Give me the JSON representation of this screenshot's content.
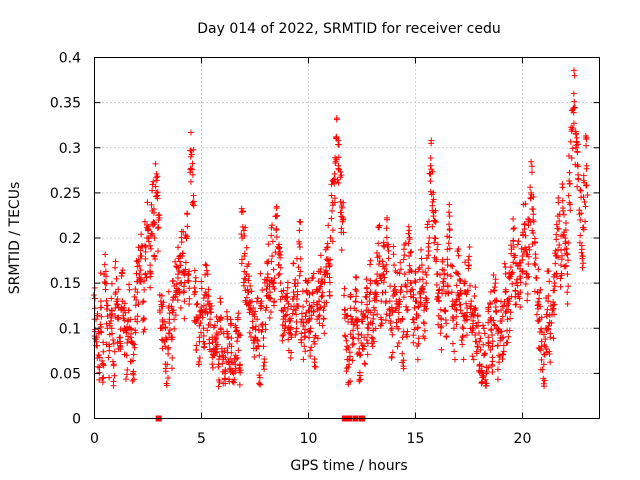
{
  "chart_data": {
    "type": "scatter",
    "title": "Day 014 of 2022, SRMTID for receiver cedu",
    "xlabel": "GPS time / hours",
    "ylabel": "SRMTID / TECUs",
    "xlim": [
      0,
      23.6
    ],
    "ylim": [
      0,
      0.4
    ],
    "x_ticks": [
      0,
      5,
      10,
      15,
      20
    ],
    "x_tick_labels": [
      "0",
      "5",
      "10",
      "15",
      "20"
    ],
    "y_ticks": [
      0,
      0.05,
      0.1,
      0.15,
      0.2,
      0.25,
      0.3,
      0.35,
      0.4
    ],
    "y_tick_labels": [
      "0",
      "0.05",
      "0.1",
      "0.15",
      "0.2",
      "0.25",
      "0.3",
      "0.35",
      "0.4"
    ],
    "grid": true,
    "marker": "plus",
    "color": "#ff0000",
    "series": [
      {
        "name": "SRMTID",
        "x": [
          0.0,
          0.1,
          0.2,
          0.3,
          0.4,
          0.5,
          0.6,
          0.7,
          0.8,
          0.9,
          1.0,
          1.1,
          1.2,
          1.3,
          1.4,
          1.5,
          1.6,
          1.7,
          1.8,
          1.9,
          2.0,
          2.1,
          2.2,
          2.3,
          2.4,
          2.5,
          2.6,
          2.7,
          2.8,
          2.9,
          3.0,
          3.1,
          3.2,
          3.3,
          3.4,
          3.5,
          3.6,
          3.7,
          3.8,
          3.9,
          4.0,
          4.1,
          4.2,
          4.3,
          4.4,
          4.5,
          4.6,
          4.7,
          4.8,
          4.9,
          5.0,
          5.1,
          5.2,
          5.3,
          5.4,
          5.5,
          5.6,
          5.7,
          5.8,
          5.9,
          6.0,
          6.1,
          6.2,
          6.3,
          6.4,
          6.5,
          6.6,
          6.7,
          6.8,
          6.9,
          7.0,
          7.1,
          7.2,
          7.3,
          7.4,
          7.5,
          7.6,
          7.7,
          7.8,
          7.9,
          8.0,
          8.1,
          8.2,
          8.3,
          8.4,
          8.5,
          8.6,
          8.7,
          8.8,
          8.9,
          9.0,
          9.1,
          9.2,
          9.3,
          9.4,
          9.5,
          9.6,
          9.7,
          9.8,
          9.9,
          10.0,
          10.1,
          10.2,
          10.3,
          10.4,
          10.5,
          10.6,
          10.7,
          10.8,
          10.9,
          11.0,
          11.1,
          11.2,
          11.3,
          11.4,
          11.5,
          11.6,
          11.7,
          11.8,
          11.9,
          12.0,
          12.1,
          12.2,
          12.3,
          12.4,
          12.5,
          12.6,
          12.7,
          12.8,
          12.9,
          13.0,
          13.1,
          13.2,
          13.3,
          13.4,
          13.5,
          13.6,
          13.7,
          13.8,
          13.9,
          14.0,
          14.1,
          14.2,
          14.3,
          14.4,
          14.5,
          14.6,
          14.7,
          14.8,
          14.9,
          15.0,
          15.1,
          15.2,
          15.3,
          15.4,
          15.5,
          15.6,
          15.7,
          15.8,
          15.9,
          16.0,
          16.1,
          16.2,
          16.3,
          16.4,
          16.5,
          16.6,
          16.7,
          16.8,
          16.9,
          17.0,
          17.1,
          17.2,
          17.3,
          17.4,
          17.5,
          17.6,
          17.7,
          17.8,
          17.9,
          18.0,
          18.1,
          18.2,
          18.3,
          18.4,
          18.5,
          18.6,
          18.7,
          18.8,
          18.9,
          19.0,
          19.1,
          19.2,
          19.3,
          19.4,
          19.5,
          19.6,
          19.7,
          19.8,
          19.9,
          20.0,
          20.1,
          20.2,
          20.3,
          20.4,
          20.5,
          20.6,
          20.7,
          20.8,
          20.9,
          21.0,
          21.1,
          21.2,
          21.3,
          21.4,
          21.5,
          21.6,
          21.7,
          21.8,
          21.9,
          22.0,
          22.1,
          22.2,
          22.3,
          22.4,
          22.5,
          22.6,
          22.7,
          22.8,
          22.9,
          23.0
        ],
        "y": [
          0.11,
          0.09,
          0.07,
          0.13,
          0.06,
          0.15,
          0.1,
          0.08,
          0.12,
          0.06,
          0.14,
          0.11,
          0.09,
          0.13,
          0.1,
          0.07,
          0.12,
          0.09,
          0.05,
          0.11,
          0.14,
          0.16,
          0.18,
          0.13,
          0.19,
          0.21,
          0.17,
          0.23,
          0.2,
          0.25,
          0.22,
          0.13,
          0.1,
          0.08,
          0.06,
          0.11,
          0.09,
          0.12,
          0.14,
          0.16,
          0.15,
          0.18,
          0.13,
          0.2,
          0.16,
          0.29,
          0.27,
          0.14,
          0.11,
          0.09,
          0.12,
          0.1,
          0.14,
          0.13,
          0.11,
          0.09,
          0.07,
          0.08,
          0.06,
          0.1,
          0.07,
          0.05,
          0.09,
          0.06,
          0.08,
          0.05,
          0.07,
          0.09,
          0.06,
          0.2,
          0.18,
          0.16,
          0.14,
          0.12,
          0.1,
          0.09,
          0.11,
          0.07,
          0.13,
          0.08,
          0.12,
          0.16,
          0.14,
          0.18,
          0.13,
          0.21,
          0.17,
          0.15,
          0.12,
          0.1,
          0.13,
          0.11,
          0.09,
          0.14,
          0.12,
          0.15,
          0.19,
          0.11,
          0.08,
          0.13,
          0.12,
          0.1,
          0.14,
          0.09,
          0.11,
          0.13,
          0.15,
          0.12,
          0.16,
          0.19,
          0.17,
          0.23,
          0.26,
          0.31,
          0.28,
          0.24,
          0.22,
          0.12,
          0.08,
          0.06,
          0.11,
          0.09,
          0.13,
          0.1,
          0.07,
          0.11,
          0.09,
          0.12,
          0.1,
          0.14,
          0.08,
          0.12,
          0.15,
          0.18,
          0.13,
          0.16,
          0.14,
          0.19,
          0.12,
          0.1,
          0.17,
          0.13,
          0.11,
          0.14,
          0.09,
          0.16,
          0.12,
          0.18,
          0.15,
          0.11,
          0.13,
          0.1,
          0.14,
          0.17,
          0.12,
          0.15,
          0.19,
          0.28,
          0.24,
          0.2,
          0.16,
          0.13,
          0.11,
          0.15,
          0.12,
          0.17,
          0.21,
          0.14,
          0.1,
          0.13,
          0.16,
          0.12,
          0.09,
          0.14,
          0.11,
          0.17,
          0.13,
          0.1,
          0.12,
          0.08,
          0.06,
          0.04,
          0.07,
          0.05,
          0.09,
          0.11,
          0.08,
          0.13,
          0.1,
          0.07,
          0.12,
          0.09,
          0.14,
          0.11,
          0.13,
          0.16,
          0.19,
          0.15,
          0.17,
          0.14,
          0.18,
          0.21,
          0.16,
          0.19,
          0.25,
          0.22,
          0.17,
          0.14,
          0.11,
          0.08,
          0.06,
          0.1,
          0.13,
          0.09,
          0.12,
          0.15,
          0.18,
          0.21,
          0.17,
          0.23,
          0.2,
          0.16,
          0.26,
          0.32,
          0.36,
          0.3,
          0.27,
          0.22,
          0.18,
          0.24,
          0.28
        ],
        "scatter_spread": 0.035
      }
    ],
    "gap_markers_x": [
      3.0,
      11.7,
      11.8,
      11.9,
      12.2,
      12.5
    ],
    "gap_markers_y": 0
  }
}
